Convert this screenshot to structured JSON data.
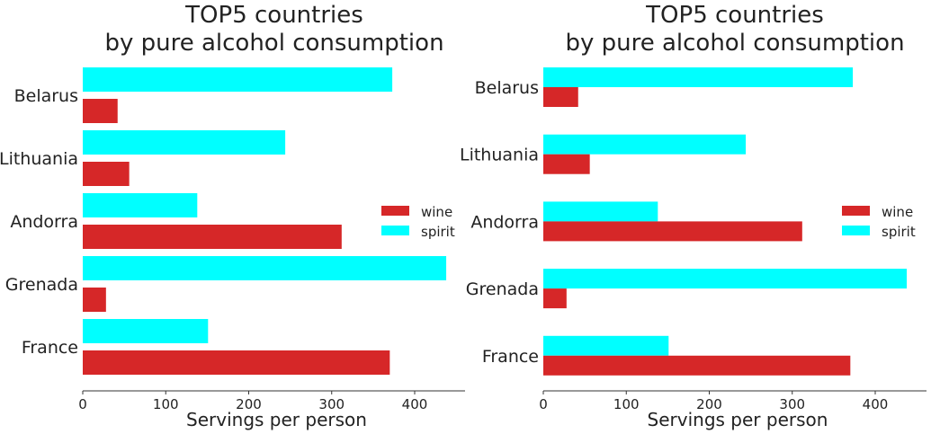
{
  "chart_data": [
    {
      "type": "bar",
      "orientation": "horizontal",
      "title": "TOP5 countries\nby pure alcohol consumption",
      "title_lines": [
        "TOP5 countries",
        "by pure alcohol consumption"
      ],
      "categories": [
        "Belarus",
        "Lithuania",
        "Andorra",
        "Grenada",
        "France"
      ],
      "series": [
        {
          "name": "wine",
          "color": "#d62728",
          "values": [
            42,
            56,
            312,
            28,
            370
          ]
        },
        {
          "name": "spirit",
          "color": "#00ffff",
          "values": [
            373,
            244,
            138,
            438,
            151
          ]
        }
      ],
      "xlabel": "Servings per person",
      "ylabel": "",
      "xlim": [
        0,
        460
      ],
      "xticks": [
        "0",
        "100",
        "200",
        "300",
        "400"
      ],
      "grid": false,
      "legend": "center-right"
    },
    {
      "type": "bar",
      "orientation": "horizontal",
      "title": "TOP5 countries\nby pure alcohol consumption",
      "title_lines": [
        "TOP5 countries",
        "by pure alcohol consumption"
      ],
      "categories": [
        "Belarus",
        "Lithuania",
        "Andorra",
        "Grenada",
        "France"
      ],
      "series": [
        {
          "name": "wine",
          "color": "#d62728",
          "values": [
            42,
            56,
            312,
            28,
            370
          ]
        },
        {
          "name": "spirit",
          "color": "#00ffff",
          "values": [
            373,
            244,
            138,
            438,
            151
          ]
        }
      ],
      "xlabel": "Servings per person",
      "ylabel": "",
      "xlim": [
        0,
        460
      ],
      "xticks": [
        "0",
        "100",
        "200",
        "300",
        "400"
      ],
      "grid": false,
      "legend": "center-right"
    }
  ]
}
